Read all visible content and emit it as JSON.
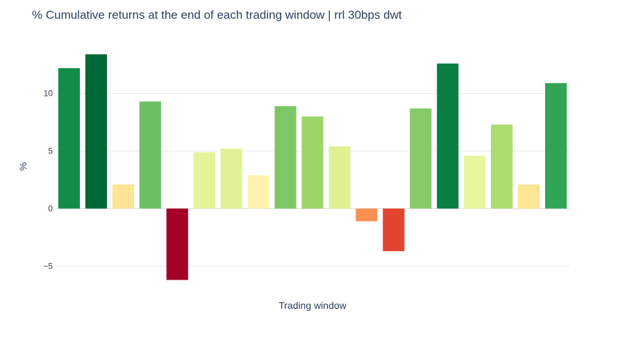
{
  "chart_data": {
    "type": "bar",
    "title": "% Cumulative returns at the end of each trading window | rrl 30bps dwt",
    "xlabel": "Trading window",
    "ylabel": "%",
    "ylim": [
      -6.9,
      14.5
    ],
    "yticks": [
      -5,
      0,
      5,
      10
    ],
    "ytick_labels": [
      "−5",
      "0",
      "5",
      "10"
    ],
    "grid": true,
    "values": [
      12.2,
      13.4,
      2.1,
      9.3,
      -6.2,
      4.9,
      5.2,
      2.9,
      8.9,
      8.0,
      5.4,
      -1.1,
      -3.7,
      8.7,
      12.6,
      4.6,
      7.3,
      2.1,
      10.9
    ],
    "colors": [
      "#138c4a",
      "#006837",
      "#fee595",
      "#6cc064",
      "#a50026",
      "#e5f49b",
      "#e0f295",
      "#fff3ad",
      "#7dc866",
      "#9dd569",
      "#dff293",
      "#f99153",
      "#e24430",
      "#86cb67",
      "#0a7f43",
      "#e8f59f",
      "#acdc6e",
      "#fee593",
      "#32a456"
    ]
  }
}
